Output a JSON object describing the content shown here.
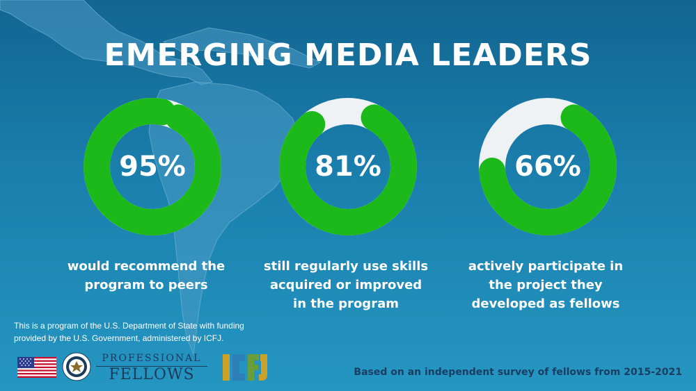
{
  "title": "EMERGING MEDIA LEADERS",
  "stats": [
    {
      "percent": "95%",
      "value": 0.95,
      "caption": [
        "would recommend the",
        "program to peers"
      ]
    },
    {
      "percent": "81%",
      "value": 0.81,
      "caption": [
        "still regularly use skills",
        "acquired or improved",
        "in the program"
      ]
    },
    {
      "percent": "66%",
      "value": 0.66,
      "caption": [
        "actively participate in",
        "the project they",
        "developed as fellows"
      ]
    }
  ],
  "colors": {
    "ring_fill": "#1db81a",
    "ring_track": "#eef2f4",
    "text": "#ffffff",
    "footer_text": "#1a3e63"
  },
  "disclaimer": [
    "This is a program of the U.S. Department of State with funding",
    "provided by the U.S. Government, administered by ICFJ."
  ],
  "logos": {
    "flag_icon": "us-flag-icon",
    "seal_icon": "state-department-seal-icon",
    "professional": "PROFESSIONAL",
    "fellows": "FELLOWS",
    "icfj": "ICFJ"
  },
  "survey_note": "Based on an independent survey of fellows from 2015-2021"
}
